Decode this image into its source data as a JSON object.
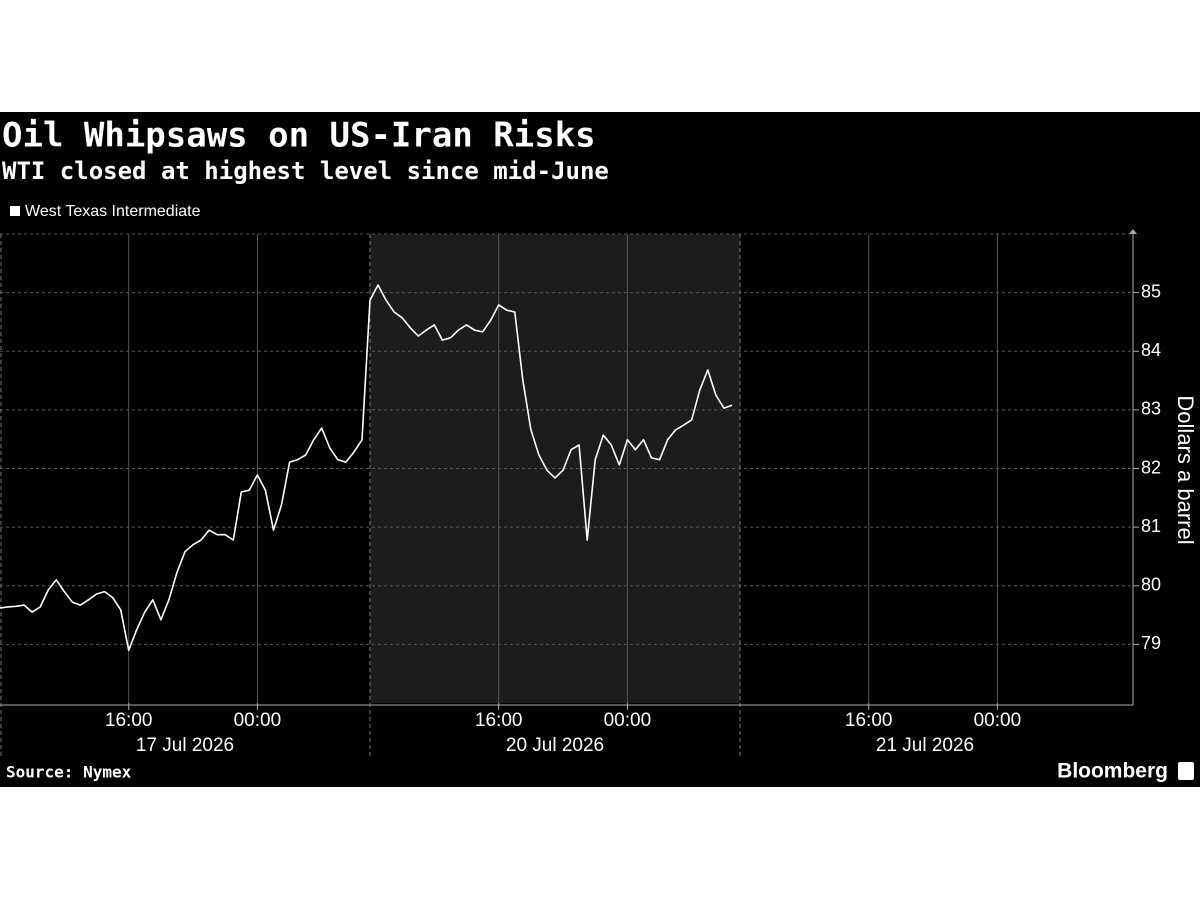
{
  "chart_data": {
    "type": "line",
    "title": "Oil Whipsaws on US-Iran Risks",
    "subtitle": "WTI closed at highest level since mid-June",
    "y_label": "Dollars a barrel",
    "source": "Source: Nymex",
    "brand": "Bloomberg",
    "legend": "top-left",
    "grid": true,
    "ylim": [
      78,
      86
    ],
    "yticks": [
      79,
      80,
      81,
      82,
      83,
      84,
      85
    ],
    "x_groups": [
      "17 Jul 2026",
      "20 Jul 2026",
      "21 Jul 2026"
    ],
    "highlight_group": 1,
    "categories": [
      null,
      null,
      null,
      null,
      null,
      null,
      null,
      null,
      null,
      null,
      null,
      null,
      null,
      null,
      null,
      null,
      "16:00",
      null,
      null,
      null,
      null,
      null,
      null,
      null,
      null,
      null,
      null,
      null,
      null,
      null,
      null,
      null,
      "00:00",
      null,
      null,
      null,
      null,
      null,
      null,
      null,
      null,
      null,
      null,
      null,
      null,
      null,
      null,
      null,
      null,
      null,
      null,
      null,
      null,
      null,
      null,
      null,
      null,
      null,
      null,
      null,
      null,
      null,
      "16:00",
      null,
      null,
      null,
      null,
      null,
      null,
      null,
      null,
      null,
      null,
      null,
      null,
      null,
      null,
      null,
      "00:00",
      null,
      null,
      null,
      null,
      null,
      null,
      null,
      null,
      null,
      null,
      null,
      null,
      null,
      null,
      null,
      null,
      null,
      null,
      null,
      null,
      null,
      null,
      null,
      null,
      null,
      null,
      null,
      null,
      null,
      "16:00",
      null,
      null,
      null,
      null,
      null,
      null,
      null,
      null,
      null,
      null,
      null,
      null,
      null,
      null,
      null,
      "00:00",
      null,
      null,
      null,
      null,
      null,
      null,
      null,
      null,
      null,
      null,
      null,
      null,
      null
    ],
    "series": [
      {
        "name": "West Texas Intermediate",
        "color": "#ffffff",
        "values": [
          79.62,
          79.64,
          79.65,
          79.67,
          79.55,
          79.64,
          79.93,
          80.1,
          79.9,
          79.72,
          79.67,
          79.76,
          79.86,
          79.9,
          79.8,
          79.59,
          78.9,
          79.25,
          79.55,
          79.76,
          79.42,
          79.76,
          80.23,
          80.58,
          80.7,
          80.78,
          80.95,
          80.87,
          80.87,
          80.78,
          81.6,
          81.63,
          81.89,
          81.63,
          80.95,
          81.38,
          82.11,
          82.15,
          82.23,
          82.49,
          82.69,
          82.35,
          82.15,
          82.11,
          82.28,
          82.49,
          84.87,
          85.13,
          84.87,
          84.67,
          84.57,
          84.4,
          84.26,
          84.36,
          84.45,
          84.19,
          84.23,
          84.36,
          84.45,
          84.36,
          84.33,
          84.53,
          84.79,
          84.7,
          84.67,
          83.51,
          82.66,
          82.23,
          81.97,
          81.84,
          81.97,
          82.32,
          82.4,
          80.78,
          82.15,
          82.57,
          82.4,
          82.06,
          82.49,
          82.32,
          82.49,
          82.18,
          82.15,
          82.49,
          82.66,
          82.74,
          82.83,
          83.34,
          83.68,
          83.25,
          83.03,
          83.08,
          null,
          null,
          null,
          null,
          null,
          null,
          null,
          null,
          null,
          null,
          null,
          null,
          null,
          null,
          null,
          null,
          null,
          null,
          null,
          null,
          null,
          null,
          null,
          null,
          null,
          null,
          null,
          null,
          null,
          null,
          null,
          null,
          null,
          null,
          null,
          null,
          null,
          null,
          null,
          null,
          null,
          null,
          null,
          null,
          null,
          null
        ]
      }
    ]
  }
}
